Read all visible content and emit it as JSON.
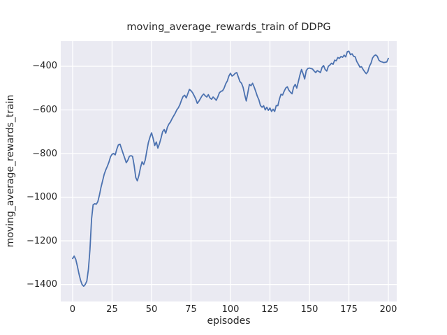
{
  "figure": {
    "background": "#ffffff"
  },
  "chart_data": {
    "type": "line",
    "title": "moving_average_rewards_train of DDPG",
    "xlabel": "episodes",
    "ylabel": "moving_average_rewards_train",
    "x_ticks": [
      0,
      25,
      50,
      75,
      100,
      125,
      150,
      175,
      200
    ],
    "y_ticks": [
      -400,
      -600,
      -800,
      -1000,
      -1200,
      -1400
    ],
    "xlim": [
      -7.5,
      205.3
    ],
    "ylim": [
      -1478,
      -285
    ],
    "grid": true,
    "legend_position": "none",
    "style": {
      "plot_background": "#eaeaf2",
      "grid_color": "#ffffff",
      "line_color": "#4c72b0",
      "text_color": "#262626"
    },
    "series": [
      {
        "name": "moving_average_rewards_train",
        "points": [
          [
            0,
            -1281
          ],
          [
            1,
            -1270
          ],
          [
            2,
            -1285
          ],
          [
            3,
            -1315
          ],
          [
            4,
            -1350
          ],
          [
            5,
            -1380
          ],
          [
            6,
            -1400
          ],
          [
            7,
            -1408
          ],
          [
            8,
            -1400
          ],
          [
            9,
            -1385
          ],
          [
            10,
            -1330
          ],
          [
            11,
            -1240
          ],
          [
            12,
            -1100
          ],
          [
            13,
            -1035
          ],
          [
            14,
            -1030
          ],
          [
            15,
            -1032
          ],
          [
            16,
            -1020
          ],
          [
            17,
            -990
          ],
          [
            18,
            -955
          ],
          [
            19,
            -925
          ],
          [
            20,
            -895
          ],
          [
            21,
            -875
          ],
          [
            22,
            -858
          ],
          [
            23,
            -840
          ],
          [
            24,
            -815
          ],
          [
            25,
            -803
          ],
          [
            26,
            -800
          ],
          [
            27,
            -806
          ],
          [
            28,
            -780
          ],
          [
            29,
            -760
          ],
          [
            30,
            -757
          ],
          [
            31,
            -778
          ],
          [
            32,
            -800
          ],
          [
            33,
            -820
          ],
          [
            34,
            -842
          ],
          [
            35,
            -830
          ],
          [
            36,
            -812
          ],
          [
            37,
            -810
          ],
          [
            38,
            -813
          ],
          [
            39,
            -855
          ],
          [
            40,
            -910
          ],
          [
            41,
            -925
          ],
          [
            42,
            -900
          ],
          [
            43,
            -865
          ],
          [
            44,
            -838
          ],
          [
            45,
            -850
          ],
          [
            46,
            -830
          ],
          [
            47,
            -788
          ],
          [
            48,
            -750
          ],
          [
            49,
            -725
          ],
          [
            50,
            -705
          ],
          [
            51,
            -730
          ],
          [
            52,
            -763
          ],
          [
            53,
            -747
          ],
          [
            54,
            -775
          ],
          [
            55,
            -755
          ],
          [
            56,
            -730
          ],
          [
            57,
            -700
          ],
          [
            58,
            -690
          ],
          [
            59,
            -707
          ],
          [
            60,
            -680
          ],
          [
            61,
            -665
          ],
          [
            62,
            -655
          ],
          [
            63,
            -640
          ],
          [
            64,
            -628
          ],
          [
            65,
            -615
          ],
          [
            66,
            -600
          ],
          [
            67,
            -590
          ],
          [
            68,
            -575
          ],
          [
            69,
            -555
          ],
          [
            70,
            -538
          ],
          [
            71,
            -533
          ],
          [
            72,
            -545
          ],
          [
            73,
            -525
          ],
          [
            74,
            -506
          ],
          [
            75,
            -512
          ],
          [
            76,
            -521
          ],
          [
            77,
            -535
          ],
          [
            78,
            -550
          ],
          [
            79,
            -570
          ],
          [
            80,
            -560
          ],
          [
            81,
            -548
          ],
          [
            82,
            -535
          ],
          [
            83,
            -527
          ],
          [
            84,
            -535
          ],
          [
            85,
            -541
          ],
          [
            86,
            -530
          ],
          [
            87,
            -545
          ],
          [
            88,
            -551
          ],
          [
            89,
            -541
          ],
          [
            90,
            -548
          ],
          [
            91,
            -556
          ],
          [
            92,
            -540
          ],
          [
            93,
            -521
          ],
          [
            94,
            -515
          ],
          [
            95,
            -512
          ],
          [
            96,
            -500
          ],
          [
            97,
            -480
          ],
          [
            98,
            -467
          ],
          [
            99,
            -445
          ],
          [
            100,
            -432
          ],
          [
            101,
            -445
          ],
          [
            102,
            -440
          ],
          [
            103,
            -432
          ],
          [
            104,
            -429
          ],
          [
            105,
            -450
          ],
          [
            106,
            -470
          ],
          [
            107,
            -478
          ],
          [
            108,
            -497
          ],
          [
            109,
            -530
          ],
          [
            110,
            -559
          ],
          [
            111,
            -520
          ],
          [
            112,
            -483
          ],
          [
            113,
            -489
          ],
          [
            114,
            -478
          ],
          [
            115,
            -495
          ],
          [
            116,
            -516
          ],
          [
            117,
            -537
          ],
          [
            118,
            -554
          ],
          [
            119,
            -580
          ],
          [
            120,
            -588
          ],
          [
            121,
            -581
          ],
          [
            122,
            -600
          ],
          [
            123,
            -588
          ],
          [
            124,
            -602
          ],
          [
            125,
            -591
          ],
          [
            126,
            -607
          ],
          [
            127,
            -597
          ],
          [
            128,
            -607
          ],
          [
            129,
            -580
          ],
          [
            130,
            -581
          ],
          [
            131,
            -550
          ],
          [
            132,
            -528
          ],
          [
            133,
            -532
          ],
          [
            134,
            -515
          ],
          [
            135,
            -500
          ],
          [
            136,
            -494
          ],
          [
            137,
            -510
          ],
          [
            138,
            -519
          ],
          [
            139,
            -526
          ],
          [
            140,
            -495
          ],
          [
            141,
            -483
          ],
          [
            142,
            -500
          ],
          [
            143,
            -470
          ],
          [
            144,
            -440
          ],
          [
            145,
            -415
          ],
          [
            146,
            -435
          ],
          [
            147,
            -458
          ],
          [
            148,
            -420
          ],
          [
            149,
            -410
          ],
          [
            150,
            -408
          ],
          [
            151,
            -410
          ],
          [
            152,
            -413
          ],
          [
            153,
            -422
          ],
          [
            154,
            -429
          ],
          [
            155,
            -420
          ],
          [
            156,
            -424
          ],
          [
            157,
            -429
          ],
          [
            158,
            -405
          ],
          [
            159,
            -397
          ],
          [
            160,
            -415
          ],
          [
            161,
            -422
          ],
          [
            162,
            -400
          ],
          [
            163,
            -394
          ],
          [
            164,
            -386
          ],
          [
            165,
            -391
          ],
          [
            166,
            -372
          ],
          [
            167,
            -375
          ],
          [
            168,
            -360
          ],
          [
            169,
            -364
          ],
          [
            170,
            -355
          ],
          [
            171,
            -359
          ],
          [
            172,
            -349
          ],
          [
            173,
            -357
          ],
          [
            174,
            -333
          ],
          [
            175,
            -331
          ],
          [
            176,
            -347
          ],
          [
            177,
            -343
          ],
          [
            178,
            -354
          ],
          [
            179,
            -357
          ],
          [
            180,
            -378
          ],
          [
            181,
            -391
          ],
          [
            182,
            -404
          ],
          [
            183,
            -402
          ],
          [
            184,
            -415
          ],
          [
            185,
            -425
          ],
          [
            186,
            -434
          ],
          [
            187,
            -425
          ],
          [
            188,
            -400
          ],
          [
            189,
            -386
          ],
          [
            190,
            -362
          ],
          [
            191,
            -352
          ],
          [
            192,
            -348
          ],
          [
            193,
            -354
          ],
          [
            194,
            -372
          ],
          [
            195,
            -378
          ],
          [
            196,
            -380
          ],
          [
            197,
            -383
          ],
          [
            198,
            -382
          ],
          [
            199,
            -380
          ],
          [
            200,
            -364
          ]
        ]
      }
    ]
  }
}
